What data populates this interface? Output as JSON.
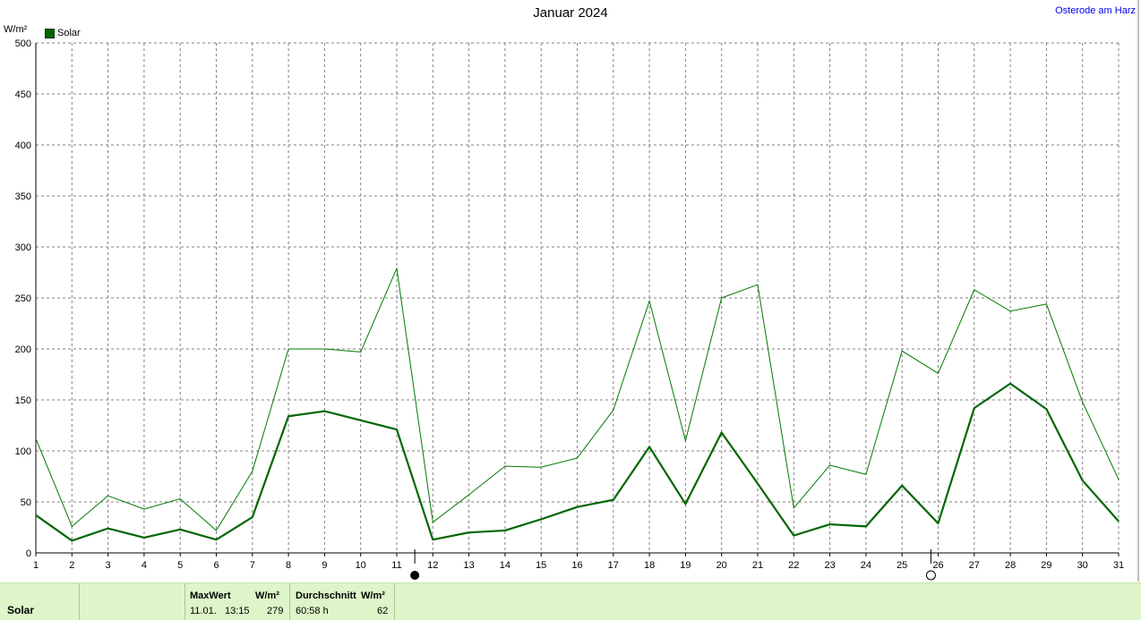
{
  "header": {
    "title": "Januar 2024",
    "location": "Osterode am Harz",
    "unit": "W/m²"
  },
  "legend": {
    "label": "Solar"
  },
  "footer": {
    "series_label": "Solar",
    "max_header": "MaxWert",
    "max_unit_header": "W/m²",
    "max_date": "11.01.",
    "max_time": "13:15",
    "max_value": "279",
    "avg_header": "Durchschnitt",
    "avg_unit_header": "W/m²",
    "avg_hours": "60:58 h",
    "avg_value": "62"
  },
  "chart_data": {
    "type": "line",
    "x": [
      1,
      2,
      3,
      4,
      5,
      6,
      7,
      8,
      9,
      10,
      11,
      12,
      13,
      14,
      15,
      16,
      17,
      18,
      19,
      20,
      21,
      22,
      23,
      24,
      25,
      26,
      27,
      28,
      29,
      30,
      31
    ],
    "ylim": [
      0,
      500
    ],
    "yticks": [
      0,
      50,
      100,
      150,
      200,
      250,
      300,
      350,
      400,
      450,
      500
    ],
    "grid": true,
    "legend_position": "top-left",
    "series": [
      {
        "name": "Solar",
        "role": "max",
        "color": "#007a00",
        "values": [
          112,
          26,
          56,
          43,
          53,
          22,
          80,
          200,
          200,
          197,
          279,
          30,
          57,
          85,
          84,
          93,
          140,
          247,
          110,
          250,
          263,
          44,
          86,
          77,
          198,
          176,
          258,
          237,
          244,
          148,
          72
        ]
      },
      {
        "name": "Solar",
        "role": "average",
        "color": "#006600",
        "values": [
          37,
          12,
          24,
          15,
          23,
          13,
          35,
          134,
          139,
          130,
          121,
          13,
          20,
          22,
          33,
          45,
          52,
          104,
          48,
          118,
          68,
          17,
          28,
          26,
          66,
          29,
          142,
          166,
          141,
          71,
          31
        ]
      }
    ],
    "moon_markers": [
      {
        "day": 11.5,
        "phase": "new-moon"
      },
      {
        "day": 25.8,
        "phase": "full-moon"
      }
    ]
  }
}
